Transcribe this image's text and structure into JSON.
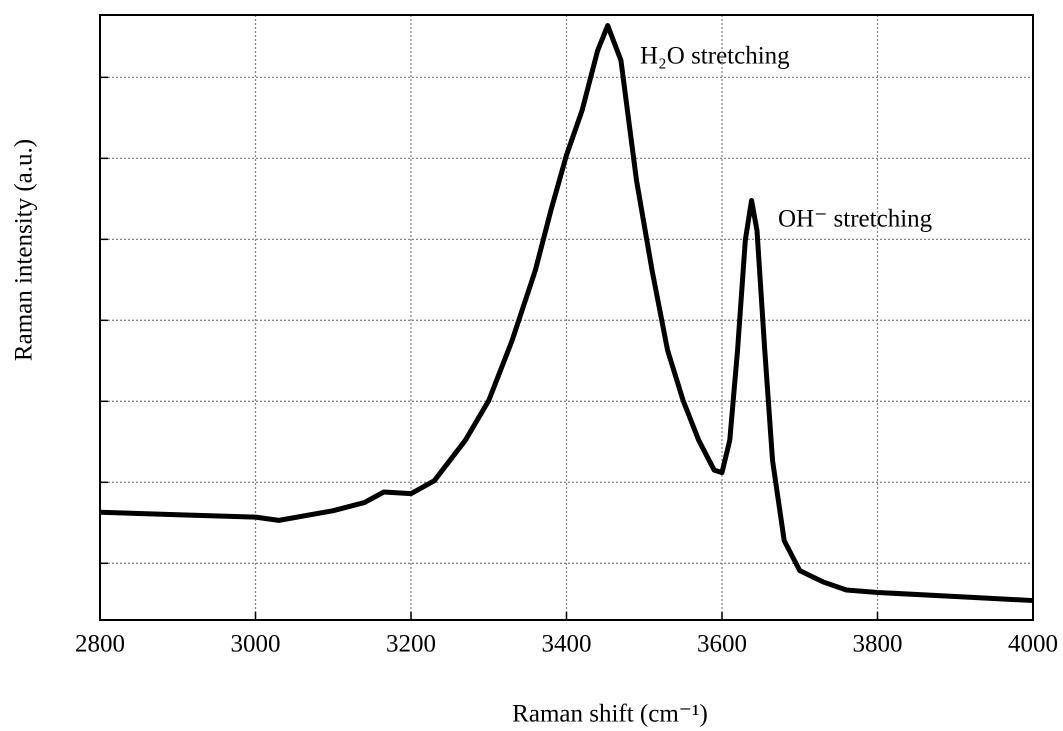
{
  "chart_data": {
    "type": "line",
    "x_label": "Raman shift (cm⁻¹)",
    "y_label": "Raman intensity (a.u.)",
    "annotations": [
      "H₂O stretching",
      "OH⁻ stretching"
    ],
    "x": [
      2800,
      2900,
      3000,
      3030,
      3100,
      3140,
      3165,
      3200,
      3230,
      3270,
      3300,
      3330,
      3360,
      3380,
      3400,
      3420,
      3440,
      3453,
      3470,
      3490,
      3510,
      3530,
      3550,
      3570,
      3590,
      3600,
      3610,
      3620,
      3630,
      3638,
      3645,
      3655,
      3665,
      3680,
      3700,
      3730,
      3760,
      3800,
      3900,
      4000
    ],
    "series": [
      {
        "color": "#000000",
        "values": [
          1.63,
          1.6,
          1.57,
          1.53,
          1.65,
          1.75,
          1.88,
          1.86,
          2.02,
          2.52,
          3.01,
          3.75,
          4.62,
          5.36,
          6.04,
          6.59,
          7.33,
          7.64,
          7.21,
          5.73,
          4.62,
          3.63,
          3.01,
          2.52,
          2.15,
          2.12,
          2.52,
          3.63,
          4.99,
          5.48,
          5.11,
          3.63,
          2.27,
          1.28,
          0.91,
          0.77,
          0.67,
          0.64,
          0.59,
          0.54
        ]
      }
    ],
    "xlim": [
      2800,
      4000
    ],
    "xticks": [
      2800,
      3000,
      3200,
      3400,
      3600,
      3800,
      4000
    ],
    "ylim": [
      0.3,
      7.77
    ],
    "yticks": [
      1,
      2,
      3,
      4,
      5,
      6,
      7
    ],
    "grid": true
  }
}
